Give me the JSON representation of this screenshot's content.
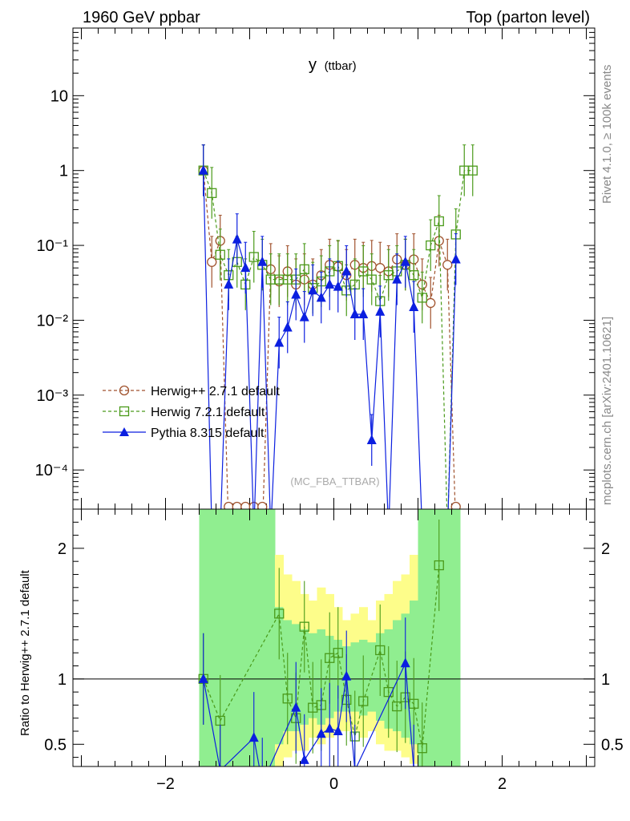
{
  "header": {
    "left": "1960 GeV ppbar",
    "right": "Top (parton level)"
  },
  "side_text": {
    "rivet": "Rivet 4.1.0, ≥ 100k events",
    "site": "mcplots.cern.ch [arXiv:2401.10621]"
  },
  "chart_data": {
    "type": "line",
    "title_main": "y",
    "title_sub": "(ttbar)",
    "watermark": "(MC_FBA_TTBAR)",
    "xlabel": "",
    "ylabel_ratio": "Ratio to Herwig++ 2.7.1 default",
    "xlim": [
      -3.1,
      3.1
    ],
    "ylim_main_log": [
      3e-05,
      80
    ],
    "ylim_ratio": [
      0.33,
      2.3
    ],
    "x_tick_labels": [
      "−2",
      "0",
      "2"
    ],
    "main_y_tick_labels": [
      "10",
      "1",
      "10⁻¹",
      "10⁻²",
      "10⁻³",
      "10⁻⁴"
    ],
    "ratio_y_tick_labels": [
      "2",
      "1",
      "0.5"
    ],
    "legend": {
      "placement": "left-middle",
      "entries": [
        "Herwig++ 2.7.1 default",
        "Herwig 7.2.1 default",
        "Pythia 8.315 default"
      ]
    },
    "colors": {
      "herwigpp": "#a0522d",
      "herwig7": "#4a9a1a",
      "pythia": "#0b1fe0",
      "band_yellow": "#fdfd8a",
      "band_green": "#90ee90"
    },
    "series": [
      {
        "name": "Herwig++ 2.7.1 default",
        "marker": "circle",
        "line": "dashed",
        "points": [
          [
            -1.55,
            1.0
          ],
          [
            -1.45,
            0.06
          ],
          [
            -1.35,
            0.115
          ],
          [
            -1.25,
            1e-05
          ],
          [
            -1.15,
            1e-05
          ],
          [
            -1.05,
            1e-05
          ],
          [
            -0.95,
            1e-05
          ],
          [
            -0.85,
            1e-05
          ],
          [
            -0.75,
            0.048
          ],
          [
            -0.65,
            0.033
          ],
          [
            -0.55,
            0.045
          ],
          [
            -0.45,
            0.03
          ],
          [
            -0.35,
            0.035
          ],
          [
            -0.25,
            0.03
          ],
          [
            -0.15,
            0.04
          ],
          [
            -0.05,
            0.055
          ],
          [
            0.05,
            0.052
          ],
          [
            0.15,
            0.04
          ],
          [
            0.25,
            0.055
          ],
          [
            0.35,
            0.05
          ],
          [
            0.45,
            0.053
          ],
          [
            0.55,
            0.05
          ],
          [
            0.65,
            0.045
          ],
          [
            0.75,
            0.065
          ],
          [
            0.85,
            0.055
          ],
          [
            0.95,
            0.065
          ],
          [
            1.05,
            0.03
          ],
          [
            1.15,
            0.017
          ],
          [
            1.25,
            0.115
          ],
          [
            1.35,
            0.055
          ],
          [
            1.45,
            1e-05
          ]
        ]
      },
      {
        "name": "Herwig 7.2.1 default",
        "marker": "square-open",
        "line": "dashed",
        "points": [
          [
            -1.55,
            1.0
          ],
          [
            -1.45,
            0.5
          ],
          [
            -1.35,
            0.075
          ],
          [
            -1.25,
            0.04
          ],
          [
            -1.15,
            0.06
          ],
          [
            -1.05,
            0.03
          ],
          [
            -0.95,
            0.07
          ],
          [
            -0.85,
            0.055
          ],
          [
            -0.75,
            0.035
          ],
          [
            -0.65,
            0.035
          ],
          [
            -0.55,
            0.035
          ],
          [
            -0.45,
            0.035
          ],
          [
            -0.35,
            0.048
          ],
          [
            -0.25,
            0.027
          ],
          [
            -0.15,
            0.033
          ],
          [
            -0.05,
            0.045
          ],
          [
            0.05,
            0.053
          ],
          [
            0.15,
            0.025
          ],
          [
            0.25,
            0.03
          ],
          [
            0.35,
            0.045
          ],
          [
            0.45,
            0.035
          ],
          [
            0.55,
            0.018
          ],
          [
            0.65,
            0.04
          ],
          [
            0.75,
            0.045
          ],
          [
            0.85,
            0.055
          ],
          [
            0.95,
            0.04
          ],
          [
            1.05,
            0.02
          ],
          [
            1.15,
            0.1
          ],
          [
            1.25,
            0.21
          ],
          [
            1.35,
            1e-05
          ],
          [
            1.45,
            0.14
          ],
          [
            1.55,
            1.0
          ],
          [
            1.65,
            1.0
          ]
        ]
      },
      {
        "name": "Pythia 8.315 default",
        "marker": "triangle-filled",
        "line": "solid",
        "points": [
          [
            -1.55,
            1.0
          ],
          [
            -1.45,
            1e-05
          ],
          [
            -1.35,
            1e-05
          ],
          [
            -1.25,
            0.03
          ],
          [
            -1.15,
            0.12
          ],
          [
            -1.05,
            0.05
          ],
          [
            -0.95,
            1e-05
          ],
          [
            -0.85,
            0.06
          ],
          [
            -0.75,
            1e-05
          ],
          [
            -0.65,
            0.005
          ],
          [
            -0.55,
            0.008
          ],
          [
            -0.45,
            0.022
          ],
          [
            -0.35,
            0.011
          ],
          [
            -0.25,
            0.025
          ],
          [
            -0.15,
            0.02
          ],
          [
            -0.05,
            0.03
          ],
          [
            0.05,
            0.028
          ],
          [
            0.15,
            0.045
          ],
          [
            0.25,
            0.012
          ],
          [
            0.35,
            0.012
          ],
          [
            0.45,
            0.00025
          ],
          [
            0.55,
            0.013
          ],
          [
            0.65,
            1e-05
          ],
          [
            0.75,
            0.035
          ],
          [
            0.85,
            0.06
          ],
          [
            0.95,
            0.015
          ],
          [
            1.05,
            1e-05
          ],
          [
            1.15,
            1e-05
          ],
          [
            1.25,
            1e-05
          ],
          [
            1.35,
            1e-05
          ],
          [
            1.45,
            0.065
          ]
        ]
      }
    ],
    "ratio_series": [
      {
        "name": "Herwig 7.2.1 default",
        "points": [
          [
            -1.55,
            1.0
          ],
          [
            -1.35,
            0.68
          ],
          [
            -0.65,
            1.5
          ],
          [
            -0.55,
            0.85
          ],
          [
            -0.45,
            0.7
          ],
          [
            -0.35,
            1.4
          ],
          [
            -0.25,
            0.78
          ],
          [
            -0.15,
            0.8
          ],
          [
            -0.05,
            1.16
          ],
          [
            0.05,
            1.2
          ],
          [
            0.15,
            0.84
          ],
          [
            0.25,
            0.56
          ],
          [
            0.35,
            0.83
          ],
          [
            0.55,
            1.22
          ],
          [
            0.65,
            0.9
          ],
          [
            0.75,
            0.79
          ],
          [
            0.85,
            0.86
          ],
          [
            0.95,
            0.81
          ],
          [
            1.05,
            0.47
          ],
          [
            1.25,
            1.87
          ]
        ]
      },
      {
        "name": "Pythia 8.315 default",
        "points": [
          [
            -1.55,
            1.0
          ],
          [
            -1.35,
            0.3
          ],
          [
            -0.95,
            0.55
          ],
          [
            -0.85,
            0.2
          ],
          [
            -0.45,
            0.78
          ],
          [
            -0.35,
            0.38
          ],
          [
            -0.15,
            0.58
          ],
          [
            -0.05,
            0.62
          ],
          [
            0.05,
            0.6
          ],
          [
            0.15,
            1.02
          ],
          [
            0.25,
            0.3
          ],
          [
            0.85,
            1.12
          ],
          [
            0.95,
            0.3
          ]
        ]
      }
    ],
    "ratio_bands": {
      "x_edges": [
        -1.6,
        -1.5,
        -1.4,
        -1.3,
        -1.2,
        -1.1,
        -1.0,
        -0.9,
        -0.8,
        -0.7,
        -0.6,
        -0.5,
        -0.4,
        -0.3,
        -0.2,
        -0.1,
        0.0,
        0.1,
        0.2,
        0.3,
        0.4,
        0.5,
        0.6,
        0.7,
        0.8,
        0.9,
        1.0,
        1.1,
        1.2,
        1.3,
        1.4,
        1.5
      ],
      "yellow_lo": [
        0.2,
        0.2,
        0.2,
        0.2,
        0.2,
        0.2,
        0.2,
        0.2,
        0.2,
        0.3,
        0.4,
        0.45,
        0.45,
        0.55,
        0.5,
        0.55,
        0.6,
        0.6,
        0.6,
        0.55,
        0.6,
        0.5,
        0.45,
        0.45,
        0.4,
        0.35,
        0.2,
        0.2,
        0.2,
        0.2,
        0.2
      ],
      "yellow_hi": [
        2.5,
        2.5,
        2.5,
        2.5,
        2.5,
        2.5,
        2.5,
        2.5,
        2.5,
        1.95,
        1.8,
        1.75,
        1.65,
        1.6,
        1.7,
        1.65,
        1.55,
        1.45,
        1.5,
        1.55,
        1.45,
        1.6,
        1.65,
        1.75,
        1.8,
        1.95,
        2.5,
        2.5,
        2.5,
        2.5,
        2.5
      ],
      "green_lo": [
        0.2,
        0.2,
        0.2,
        0.2,
        0.2,
        0.2,
        0.2,
        0.2,
        0.2,
        0.5,
        0.6,
        0.6,
        0.65,
        0.7,
        0.65,
        0.7,
        0.75,
        0.75,
        0.75,
        0.72,
        0.75,
        0.68,
        0.62,
        0.6,
        0.55,
        0.5,
        0.2,
        0.2,
        0.2,
        0.2,
        0.2
      ],
      "green_hi": [
        2.5,
        2.5,
        2.5,
        2.5,
        2.5,
        2.5,
        2.5,
        2.5,
        2.5,
        1.55,
        1.45,
        1.42,
        1.38,
        1.35,
        1.38,
        1.33,
        1.3,
        1.25,
        1.28,
        1.3,
        1.28,
        1.35,
        1.38,
        1.45,
        1.5,
        1.6,
        2.5,
        2.5,
        2.5,
        2.5,
        2.5
      ]
    }
  }
}
